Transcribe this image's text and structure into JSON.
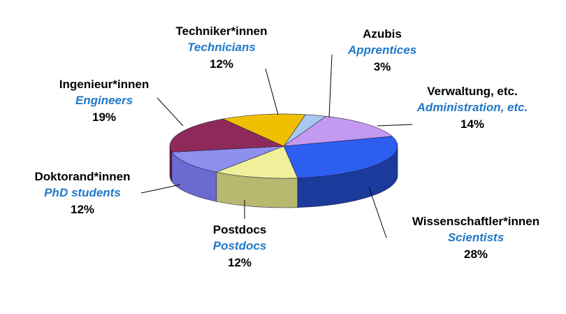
{
  "chart_data": {
    "type": "pie",
    "slices": [
      {
        "label": "Azubis",
        "label_en": "Apprentices",
        "value": 3,
        "value_label": "3%",
        "color": "#a8c8f0",
        "side_color": "#7a9cc8"
      },
      {
        "label": "Verwaltung, etc.",
        "label_en": "Administration, etc.",
        "value": 14,
        "value_label": "14%",
        "color": "#c39af0",
        "side_color": "#8e64c0"
      },
      {
        "label": "Wissenschaftler*innen",
        "label_en": "Scientists",
        "value": 28,
        "value_label": "28%",
        "color": "#2d5ef0",
        "side_color": "#1b3a9c"
      },
      {
        "label": "Postdocs",
        "label_en": "Postdocs",
        "value": 12,
        "value_label": "12%",
        "color": "#f0f09a",
        "side_color": "#b8b870"
      },
      {
        "label": "Doktorand*innen",
        "label_en": "PhD students",
        "value": 12,
        "value_label": "12%",
        "color": "#8f8ff0",
        "side_color": "#6a6ad0"
      },
      {
        "label": "Ingenieur*innen",
        "label_en": "Engineers",
        "value": 19,
        "value_label": "19%",
        "color": "#8e2a5a",
        "side_color": "#5e1a3a"
      },
      {
        "label": "Techniker*innen",
        "label_en": "Technicians",
        "value": 12,
        "value_label": "12%",
        "color": "#f0c000",
        "side_color": "#b08c00"
      }
    ],
    "style": "3d-tilted",
    "legend": "none"
  }
}
